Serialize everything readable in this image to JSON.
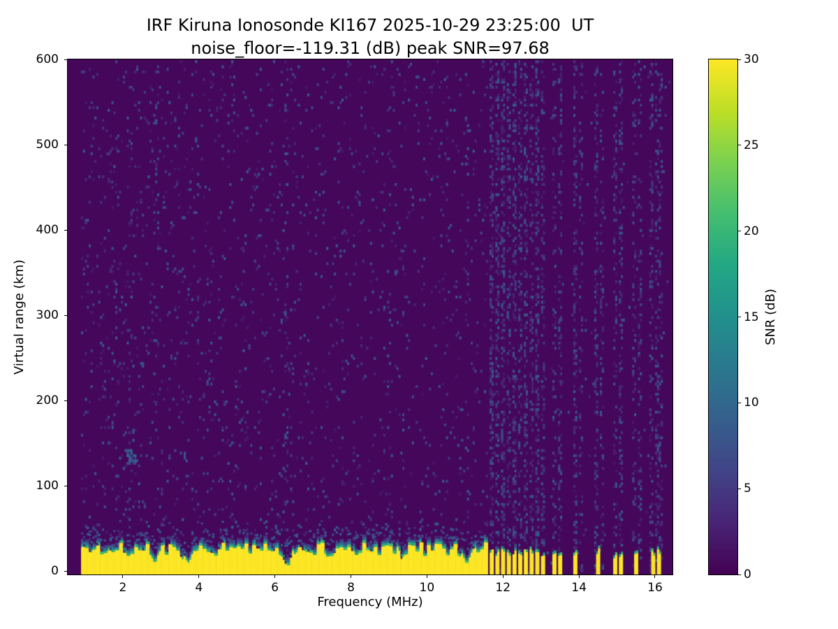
{
  "title": "IRF Kiruna Ionosonde KI167 2025-10-29 23:25:00  UT",
  "subtitle": "noise_floor=-119.31 (dB) peak SNR=97.68",
  "colors": {
    "background": "#ffffff",
    "text": "#000000",
    "cmap_low": "#440154",
    "cmap_high": "#fde725"
  },
  "chart_data": {
    "type": "heatmap",
    "title": "IRF Kiruna Ionosonde KI167 2025-10-29 23:25:00  UT",
    "subtitle": "noise_floor=-119.31 (dB) peak SNR=97.68",
    "station": "KI167",
    "timestamp_ut": "2025-10-29 23:25:00",
    "noise_floor_db": -119.31,
    "peak_snr_db": 97.68,
    "xlabel": "Frequency (MHz)",
    "ylabel": "Virtual range (km)",
    "colorbar_label": "SNR (dB)",
    "colormap": "viridis",
    "grid": false,
    "xlim": [
      0.55,
      16.46
    ],
    "ylim": [
      -4,
      600
    ],
    "clim": [
      0,
      30
    ],
    "xticks": [
      2,
      4,
      6,
      8,
      10,
      12,
      14,
      16
    ],
    "yticks": [
      0,
      100,
      200,
      300,
      400,
      500,
      600
    ],
    "colorbar_ticks": [
      0,
      5,
      10,
      15,
      20,
      25,
      30
    ],
    "freq_range": [
      0.9,
      16.4
    ],
    "freq_bin_mhz": 0.05,
    "range_bin_km": 3,
    "background_snr_db": 0.5,
    "seed": 167,
    "noise": {
      "base_p": 0.052,
      "slope_p": 0.0018,
      "hf_p": 0.006,
      "v_min": 2,
      "v_span": 7
    },
    "echo_blob": {
      "f": 2.2,
      "r": 135,
      "rf": 0.18,
      "rr": 14,
      "p": 0.5,
      "v_boost": 6
    },
    "ground_band": {
      "full_max_f": 11.62,
      "base_top_km": 26,
      "top_jitter_km": 8,
      "fringe_levels": [
        19,
        11,
        5
      ],
      "notches": [
        {
          "f": 2.85,
          "depth": 0.5,
          "w": 0.07
        },
        {
          "f": 3.7,
          "depth": 0.6,
          "w": 0.09
        },
        {
          "f": 6.35,
          "depth": 0.75,
          "w": 0.09
        },
        {
          "f": 7.45,
          "depth": 0.38,
          "w": 0.07
        },
        {
          "f": 9.3,
          "depth": 0.3,
          "w": 0.06
        },
        {
          "f": 11.05,
          "depth": 0.6,
          "w": 0.08
        }
      ],
      "stripes": [
        {
          "f": 11.7,
          "h": 24,
          "w": 0.08
        },
        {
          "f": 11.85,
          "h": 22,
          "w": 0.08
        },
        {
          "f": 12.0,
          "h": 25,
          "w": 0.08
        },
        {
          "f": 12.15,
          "h": 21,
          "w": 0.08
        },
        {
          "f": 12.3,
          "h": 24,
          "w": 0.08
        },
        {
          "f": 12.45,
          "h": 20,
          "w": 0.08
        },
        {
          "f": 12.6,
          "h": 23,
          "w": 0.08
        },
        {
          "f": 12.75,
          "h": 22,
          "w": 0.08
        },
        {
          "f": 12.9,
          "h": 24,
          "w": 0.08
        },
        {
          "f": 13.05,
          "h": 21,
          "w": 0.08
        },
        {
          "f": 13.35,
          "h": 20,
          "w": 0.07
        },
        {
          "f": 13.5,
          "h": 22,
          "w": 0.07
        },
        {
          "f": 13.9,
          "h": 20,
          "w": 0.07
        },
        {
          "f": 14.5,
          "h": 23,
          "w": 0.08
        },
        {
          "f": 14.95,
          "h": 18,
          "w": 0.06
        },
        {
          "f": 15.1,
          "h": 20,
          "w": 0.07
        },
        {
          "f": 15.5,
          "h": 22,
          "w": 0.07
        },
        {
          "f": 15.95,
          "h": 20,
          "w": 0.07
        },
        {
          "f": 16.1,
          "h": 22,
          "w": 0.07
        }
      ]
    },
    "rfi_stripes": [
      {
        "f": 2.2,
        "p": 0.1,
        "w": 0.05
      },
      {
        "f": 2.9,
        "p": 0.08,
        "w": 0.05
      },
      {
        "f": 6.3,
        "p": 0.12,
        "w": 0.05
      },
      {
        "f": 6.45,
        "p": 0.08,
        "w": 0.05
      },
      {
        "f": 9.0,
        "p": 0.07,
        "w": 0.05
      },
      {
        "f": 10.5,
        "p": 0.07,
        "w": 0.05
      },
      {
        "f": 11.05,
        "p": 0.09,
        "w": 0.05
      },
      {
        "f": 11.7,
        "p": 0.35,
        "w": 0.03
      },
      {
        "f": 11.85,
        "p": 0.3,
        "w": 0.03
      },
      {
        "f": 12.0,
        "p": 0.4,
        "w": 0.03
      },
      {
        "f": 12.15,
        "p": 0.3,
        "w": 0.03
      },
      {
        "f": 12.3,
        "p": 0.38,
        "w": 0.03
      },
      {
        "f": 12.45,
        "p": 0.28,
        "w": 0.03
      },
      {
        "f": 12.6,
        "p": 0.35,
        "w": 0.03
      },
      {
        "f": 12.75,
        "p": 0.3,
        "w": 0.03
      },
      {
        "f": 12.9,
        "p": 0.36,
        "w": 0.03
      },
      {
        "f": 13.05,
        "p": 0.28,
        "w": 0.03
      },
      {
        "f": 13.35,
        "p": 0.2,
        "w": 0.03
      },
      {
        "f": 13.5,
        "p": 0.3,
        "w": 0.03
      },
      {
        "f": 13.9,
        "p": 0.3,
        "w": 0.03
      },
      {
        "f": 14.05,
        "p": 0.2,
        "w": 0.03
      },
      {
        "f": 14.45,
        "p": 0.28,
        "w": 0.03
      },
      {
        "f": 14.6,
        "p": 0.2,
        "w": 0.03
      },
      {
        "f": 14.95,
        "p": 0.22,
        "w": 0.03
      },
      {
        "f": 15.1,
        "p": 0.28,
        "w": 0.03
      },
      {
        "f": 15.45,
        "p": 0.25,
        "w": 0.03
      },
      {
        "f": 15.6,
        "p": 0.2,
        "w": 0.03
      },
      {
        "f": 15.9,
        "p": 0.26,
        "w": 0.03
      },
      {
        "f": 16.05,
        "p": 0.22,
        "w": 0.03
      },
      {
        "f": 16.15,
        "p": 0.25,
        "w": 0.03
      }
    ]
  }
}
